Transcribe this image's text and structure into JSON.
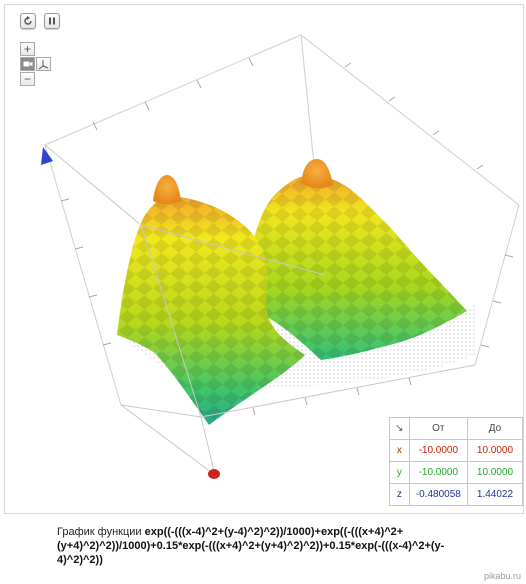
{
  "toolbar": {
    "reset_icon": "refresh-icon",
    "pause_icon": "pause-icon",
    "zoom_in_label": "+",
    "zoom_out_label": "−",
    "camera_icon": "camera-icon",
    "axes_icon": "axes-icon"
  },
  "range_table": {
    "corner": "↘",
    "header_from": "От",
    "header_to": "До",
    "rows": [
      {
        "axis": "x",
        "from": "-10.0000",
        "to": "10.0000",
        "color": "#cc2200"
      },
      {
        "axis": "y",
        "from": "-10.0000",
        "to": "10.0000",
        "color": "#22aa22"
      },
      {
        "axis": "z",
        "from": "-0.480058",
        "to": "1.44022",
        "color": "#223399"
      }
    ]
  },
  "caption": {
    "prefix": "График функции ",
    "formula": "exp((-(((x-4)^2+(y-4)^2)^2))/1000)+exp((-(((x+4)^2+(y+4)^2)^2))/1000)+0.15*exp(-(((x+4)^2+(y+4)^2)^2))+0.15*exp(-(((x-4)^2+(y-4)^2)^2))"
  },
  "watermark": "pikabu.ru",
  "colors": {
    "surface_top": "#f59a2a",
    "surface_mid": "#f2ee1f",
    "surface_low": "#2ec48a",
    "box_edge": "#c8c8c8",
    "x_axis_marker": "#cc2222",
    "z_axis_marker": "#3344cc"
  }
}
